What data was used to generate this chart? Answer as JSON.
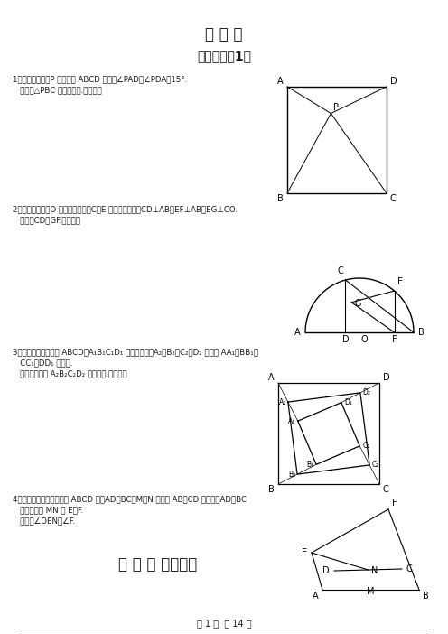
{
  "title": "压 轴 题",
  "subtitle": "经典难题（1）",
  "bg_color": "#ffffff",
  "text_color": "#1a1a1a",
  "p1_line1": "1．已知：如图，P 是正方形 ABCD 内点，∠PAD＝∠PDA＝15°.",
  "p1_line2": "   求证：△PBC 是正三角形.（初二）",
  "p2_line1": "2．已知：如图，O 是半圆的圆心，C、E 是圆上的两点，CD⊥AB，EF⊥AB，EG⊥CO.",
  "p2_line2": "   求证：CD＝GF.（初二）",
  "p3_line1": "3．如图，已知四边形 ABCD、A₁B₁C₁D₁ 都是正方形，A₂、B₂、C₂、D₂ 分别是 AA₁、BB₁、",
  "p3_line2": "   CC₁、DD₁ 的中点.",
  "p3_line3": "   求证：四边形 A₂B₂C₂D₂ 是正方形.（初二）",
  "p4_line1": "4．已知：如图，在四边形 ABCD 中，AD＝BC，M、N 分别是 AB、CD 的中点，AD、BC",
  "p4_line2": "   的延长线交 MN 于 E、F.",
  "p4_line3": "   求证：∠DEN＝∠F.",
  "footer_subtitle": "经 典 难 题（二）",
  "footer_page": "第 1 页  共 14 页"
}
